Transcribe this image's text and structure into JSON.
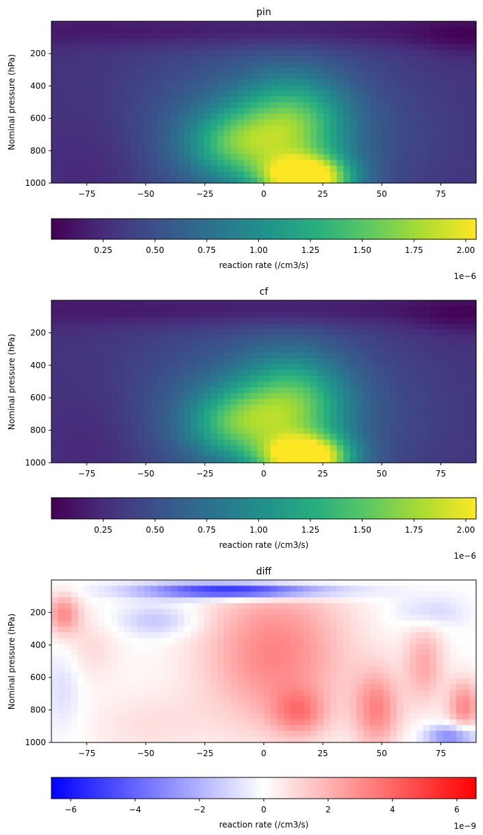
{
  "chart_data": [
    {
      "type": "heatmap",
      "title": "pin",
      "xlabel": "",
      "ylabel": "Nominal pressure (hPa)",
      "xlim": [
        -90,
        90
      ],
      "ylim": [
        1000,
        0
      ],
      "x_ticks": [
        "−75",
        "−50",
        "−25",
        "0",
        "25",
        "50",
        "75"
      ],
      "x_tick_values": [
        -75,
        -50,
        -25,
        0,
        25,
        50,
        75
      ],
      "y_ticks": [
        "200",
        "400",
        "600",
        "800",
        "1000"
      ],
      "y_tick_values": [
        200,
        400,
        600,
        800,
        1000
      ],
      "colormap": "viridis",
      "colorbar": {
        "label": "reaction rate (/cm3/s)",
        "range": [
          0.0,
          2.05e-06
        ],
        "ticks": [
          "0.25",
          "0.50",
          "0.75",
          "1.00",
          "1.25",
          "1.50",
          "1.75",
          "2.00"
        ],
        "tick_values": [
          0.25,
          0.5,
          0.75,
          1.0,
          1.25,
          1.5,
          1.75,
          2.0
        ],
        "offset_text": "1e−6"
      },
      "field": {
        "units": "1e-6 /cm3/s",
        "background": 0.28,
        "blobs": [
          {
            "lat": 18,
            "p": 975,
            "slat": 13,
            "sp": 95,
            "amp": 1.75
          },
          {
            "lat": 12,
            "p": 650,
            "slat": 16,
            "sp": 210,
            "amp": 0.95
          },
          {
            "lat": -13,
            "p": 760,
            "slat": 14,
            "sp": 150,
            "amp": 0.7
          },
          {
            "lat": 0,
            "p": 700,
            "slat": 42,
            "sp": 380,
            "amp": 0.45
          },
          {
            "lat": 0,
            "p": 60,
            "slat": 110,
            "sp": 70,
            "amp": -0.2
          },
          {
            "lat": 85,
            "p": 100,
            "slat": 15,
            "sp": 90,
            "amp": -0.15
          },
          {
            "lat": -70,
            "p": 900,
            "slat": 16,
            "sp": 300,
            "amp": -0.12
          }
        ]
      }
    },
    {
      "type": "heatmap",
      "title": "cf",
      "xlabel": "",
      "ylabel": "Nominal pressure (hPa)",
      "xlim": [
        -90,
        90
      ],
      "ylim": [
        1000,
        0
      ],
      "x_ticks": [
        "−75",
        "−50",
        "−25",
        "0",
        "25",
        "50",
        "75"
      ],
      "x_tick_values": [
        -75,
        -50,
        -25,
        0,
        25,
        50,
        75
      ],
      "y_ticks": [
        "200",
        "400",
        "600",
        "800",
        "1000"
      ],
      "y_tick_values": [
        200,
        400,
        600,
        800,
        1000
      ],
      "colormap": "viridis",
      "colorbar": {
        "label": "reaction rate (/cm3/s)",
        "range": [
          0.0,
          2.05e-06
        ],
        "ticks": [
          "0.25",
          "0.50",
          "0.75",
          "1.00",
          "1.25",
          "1.50",
          "1.75",
          "2.00"
        ],
        "tick_values": [
          0.25,
          0.5,
          0.75,
          1.0,
          1.25,
          1.5,
          1.75,
          2.0
        ],
        "offset_text": "1e−6"
      },
      "field": {
        "units": "1e-6 /cm3/s",
        "background": 0.28,
        "blobs": [
          {
            "lat": 18,
            "p": 975,
            "slat": 13,
            "sp": 95,
            "amp": 1.74
          },
          {
            "lat": 12,
            "p": 650,
            "slat": 16,
            "sp": 210,
            "amp": 0.94
          },
          {
            "lat": -13,
            "p": 760,
            "slat": 14,
            "sp": 150,
            "amp": 0.69
          },
          {
            "lat": 0,
            "p": 700,
            "slat": 42,
            "sp": 380,
            "amp": 0.44
          },
          {
            "lat": 0,
            "p": 60,
            "slat": 110,
            "sp": 70,
            "amp": -0.2
          },
          {
            "lat": 85,
            "p": 100,
            "slat": 15,
            "sp": 90,
            "amp": -0.15
          },
          {
            "lat": -70,
            "p": 900,
            "slat": 16,
            "sp": 300,
            "amp": -0.12
          }
        ]
      }
    },
    {
      "type": "heatmap",
      "title": "diff",
      "xlabel": "",
      "ylabel": "Nominal pressure (hPa)",
      "xlim": [
        -90,
        90
      ],
      "ylim": [
        1000,
        0
      ],
      "x_ticks": [
        "−75",
        "−50",
        "−25",
        "0",
        "25",
        "50",
        "75"
      ],
      "x_tick_values": [
        -75,
        -50,
        -25,
        0,
        25,
        50,
        75
      ],
      "y_ticks": [
        "200",
        "400",
        "600",
        "800",
        "1000"
      ],
      "y_tick_values": [
        200,
        400,
        600,
        800,
        1000
      ],
      "colormap": "bwr",
      "colorbar": {
        "label": "reaction rate (/cm3/s)",
        "range": [
          -6.6e-09,
          6.6e-09
        ],
        "ticks": [
          "−6",
          "−4",
          "−2",
          "0",
          "2",
          "4",
          "6"
        ],
        "tick_values": [
          -6,
          -4,
          -2,
          0,
          2,
          4,
          6
        ],
        "offset_text": "1e−9"
      },
      "field": {
        "units": "1e-9 /cm3/s",
        "background": 0.0,
        "blobs": [
          {
            "lat": 5,
            "p": 450,
            "slat": 22,
            "sp": 330,
            "amp": 3.2
          },
          {
            "lat": 15,
            "p": 820,
            "slat": 8,
            "sp": 100,
            "amp": 2.3
          },
          {
            "lat": 48,
            "p": 800,
            "slat": 7,
            "sp": 170,
            "amp": 3.0
          },
          {
            "lat": 68,
            "p": 520,
            "slat": 6,
            "sp": 180,
            "amp": 2.2
          },
          {
            "lat": 85,
            "p": 780,
            "slat": 5,
            "sp": 120,
            "amp": 3.0
          },
          {
            "lat": -85,
            "p": 210,
            "slat": 5,
            "sp": 90,
            "amp": 3.0
          },
          {
            "lat": -75,
            "p": 420,
            "slat": 10,
            "sp": 150,
            "amp": 1.0
          },
          {
            "lat": -10,
            "p": 65,
            "slat": 28,
            "sp": 35,
            "amp": -6.5
          },
          {
            "lat": -45,
            "p": 250,
            "slat": 12,
            "sp": 70,
            "amp": -1.6
          },
          {
            "lat": 70,
            "p": 200,
            "slat": 10,
            "sp": 70,
            "amp": -1.3
          },
          {
            "lat": 80,
            "p": 960,
            "slat": 8,
            "sp": 50,
            "amp": -3.5
          },
          {
            "lat": -85,
            "p": 620,
            "slat": 6,
            "sp": 220,
            "amp": -1.0
          },
          {
            "lat": -50,
            "p": 900,
            "slat": 18,
            "sp": 150,
            "amp": 0.8
          }
        ]
      }
    }
  ]
}
